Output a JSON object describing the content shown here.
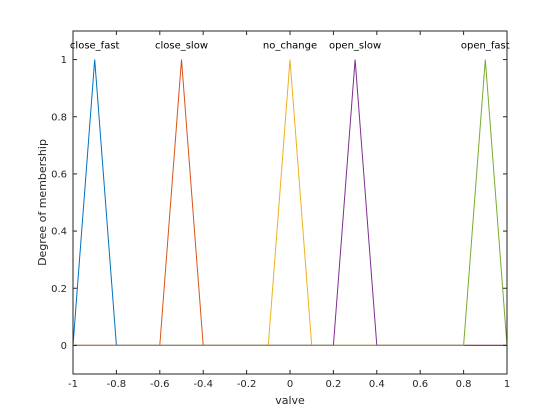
{
  "chart_data": {
    "type": "line",
    "xlabel": "valve",
    "ylabel": "Degree of membership",
    "xlim": [
      -1,
      1
    ],
    "ylim": [
      -0.1,
      1.1
    ],
    "xticks": [
      -1,
      -0.8,
      -0.6,
      -0.4,
      -0.2,
      0,
      0.2,
      0.4,
      0.6,
      0.8,
      1
    ],
    "xtick_labels": [
      "-1",
      "-0.8",
      "-0.6",
      "-0.4",
      "-0.2",
      "0",
      "0.2",
      "0.4",
      "0.6",
      "0.8",
      "1"
    ],
    "yticks": [
      0,
      0.2,
      0.4,
      0.6,
      0.8,
      1
    ],
    "ytick_labels": [
      "0",
      "0.2",
      "0.4",
      "0.6",
      "0.8",
      "1"
    ],
    "grid": false,
    "series": [
      {
        "name": "close_fast",
        "color": "#0072BD",
        "x": [
          -1,
          -0.9,
          -0.8,
          1
        ],
        "y": [
          0,
          1,
          0,
          0
        ]
      },
      {
        "name": "close_slow",
        "color": "#D95319",
        "x": [
          -1,
          -0.6,
          -0.5,
          -0.4,
          1
        ],
        "y": [
          0,
          0,
          1,
          0,
          0
        ]
      },
      {
        "name": "no_change",
        "color": "#EDB120",
        "x": [
          -1,
          -0.1,
          0,
          0.1,
          1
        ],
        "y": [
          0,
          0,
          1,
          0,
          0
        ]
      },
      {
        "name": "open_slow",
        "color": "#7E2F8E",
        "x": [
          -1,
          0.2,
          0.3,
          0.4,
          1
        ],
        "y": [
          0,
          0,
          1,
          0,
          0
        ]
      },
      {
        "name": "open_fast",
        "color": "#77AC30",
        "x": [
          -1,
          0.8,
          0.9,
          1
        ],
        "y": [
          0,
          0,
          1,
          0
        ]
      }
    ]
  }
}
